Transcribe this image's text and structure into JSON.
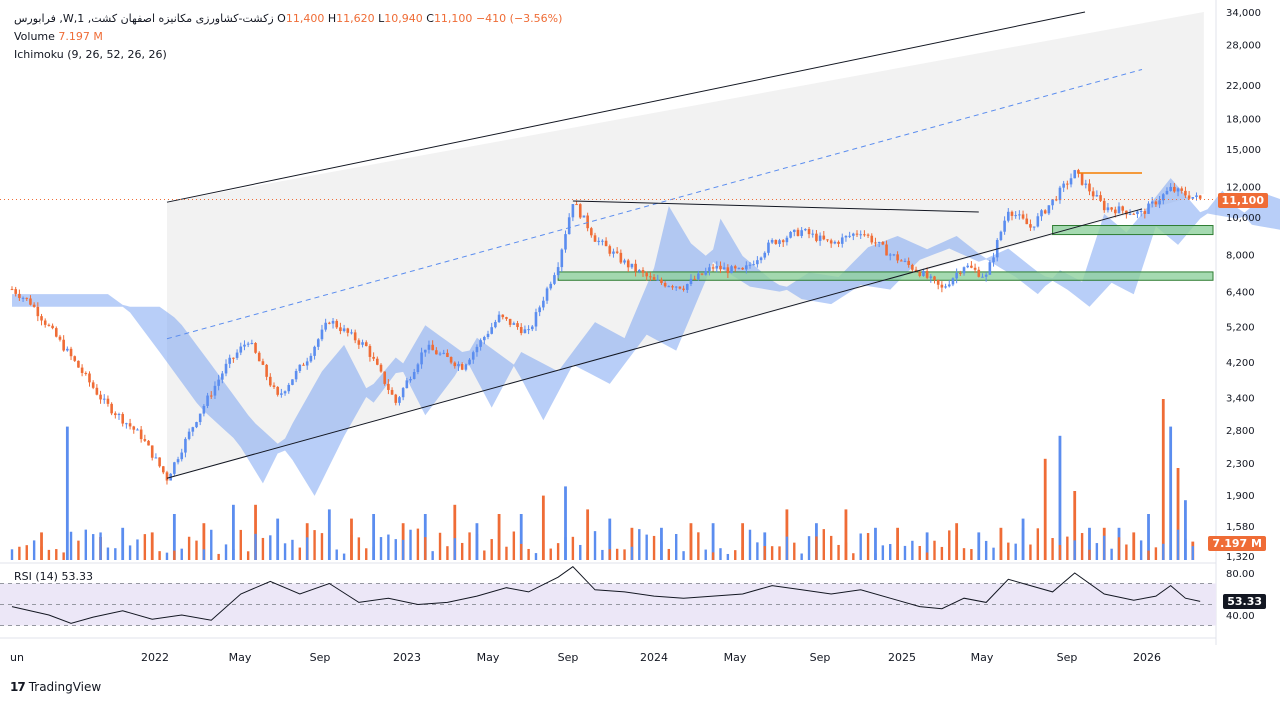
{
  "legend": {
    "symbol": "فرابورس ,W,زکشت-کشاورزی مکانیزه اصفهان کشت, 1",
    "o_label": "O",
    "o_value": "11,400",
    "h_label": "H",
    "h_value": "11,620",
    "l_label": "L",
    "l_value": "10,940",
    "c_label": "C",
    "c_value": "11,100",
    "change": "−410 (−3.56%)",
    "volume_label": "Volume",
    "volume_value": "7.197 M",
    "ichimoku_label": "Ichimoku (9, 26, 52, 26, 26)"
  },
  "badges": {
    "price": "11,100",
    "volume": "7.197 M",
    "rsi": "53.33"
  },
  "rsi": {
    "label": "RSI (14)",
    "value": "53.33"
  },
  "brand": {
    "logo": "17",
    "name": "TradingView"
  },
  "colors": {
    "up": "#5b8def",
    "down": "#ef6c36",
    "cloud_up": "#7ea6f3",
    "cloud_down": "#f0a580",
    "channel_fill": "#f2f2f2",
    "zone": "#8fd19e",
    "zone_border": "#2e7d32",
    "resistance": "#f57c00",
    "midline": "#5b8def",
    "rsi_band": "#ece7f7"
  },
  "chart_data": {
    "type": "candlestick",
    "scale": "log",
    "price_ticks": [
      "34,000",
      "28,000",
      "22,000",
      "18,000",
      "15,000",
      "12,000",
      "10,000",
      "8,000",
      "6,400",
      "5,200",
      "4,200",
      "3,400",
      "2,800",
      "2,300",
      "1,900",
      "1,580",
      "1,320"
    ],
    "price_tick_values": [
      34000,
      28000,
      22000,
      18000,
      15000,
      12000,
      10000,
      8000,
      6400,
      5200,
      4200,
      3400,
      2800,
      2300,
      1900,
      1580,
      1320
    ],
    "rsi_ticks": [
      "80.00",
      "40.00"
    ],
    "x_ticks": [
      "un",
      "2022",
      "May",
      "Sep",
      "2023",
      "May",
      "Sep",
      "2024",
      "May",
      "Sep",
      "2025",
      "May",
      "Sep",
      "2026"
    ],
    "anchors": [
      {
        "w": 0,
        "p": 6500
      },
      {
        "w": 5,
        "p": 6000
      },
      {
        "w": 14,
        "p": 4600
      },
      {
        "w": 25,
        "p": 3300
      },
      {
        "w": 35,
        "p": 2700
      },
      {
        "w": 42,
        "p": 2100
      },
      {
        "w": 50,
        "p": 3000
      },
      {
        "w": 58,
        "p": 4100
      },
      {
        "w": 64,
        "p": 4800
      },
      {
        "w": 72,
        "p": 3400
      },
      {
        "w": 80,
        "p": 4300
      },
      {
        "w": 86,
        "p": 5400
      },
      {
        "w": 96,
        "p": 4600
      },
      {
        "w": 104,
        "p": 3300
      },
      {
        "w": 112,
        "p": 4600
      },
      {
        "w": 122,
        "p": 4100
      },
      {
        "w": 132,
        "p": 5500
      },
      {
        "w": 140,
        "p": 5000
      },
      {
        "w": 148,
        "p": 7600
      },
      {
        "w": 152,
        "p": 11000
      },
      {
        "w": 158,
        "p": 8800
      },
      {
        "w": 166,
        "p": 7600
      },
      {
        "w": 174,
        "p": 6800
      },
      {
        "w": 182,
        "p": 6600
      },
      {
        "w": 190,
        "p": 7400
      },
      {
        "w": 198,
        "p": 7200
      },
      {
        "w": 206,
        "p": 8600
      },
      {
        "w": 214,
        "p": 9200
      },
      {
        "w": 222,
        "p": 8500
      },
      {
        "w": 230,
        "p": 9200
      },
      {
        "w": 238,
        "p": 8000
      },
      {
        "w": 246,
        "p": 7200
      },
      {
        "w": 252,
        "p": 6500
      },
      {
        "w": 258,
        "p": 7500
      },
      {
        "w": 264,
        "p": 7000
      },
      {
        "w": 270,
        "p": 10500
      },
      {
        "w": 276,
        "p": 9400
      },
      {
        "w": 282,
        "p": 11000
      },
      {
        "w": 288,
        "p": 13000
      },
      {
        "w": 296,
        "p": 10600
      },
      {
        "w": 306,
        "p": 10200
      },
      {
        "w": 314,
        "p": 11800
      },
      {
        "w": 322,
        "p": 11100
      }
    ],
    "volume": [
      {
        "w": 8,
        "v": 0.6
      },
      {
        "w": 15,
        "v": 2.9
      },
      {
        "w": 24,
        "v": 0.5
      },
      {
        "w": 30,
        "v": 0.7
      },
      {
        "w": 38,
        "v": 0.6
      },
      {
        "w": 44,
        "v": 1.0
      },
      {
        "w": 52,
        "v": 0.8
      },
      {
        "w": 60,
        "v": 1.2
      },
      {
        "w": 66,
        "v": 1.2
      },
      {
        "w": 72,
        "v": 0.9
      },
      {
        "w": 80,
        "v": 0.8
      },
      {
        "w": 86,
        "v": 1.1
      },
      {
        "w": 92,
        "v": 0.9
      },
      {
        "w": 98,
        "v": 1.0
      },
      {
        "w": 106,
        "v": 0.8
      },
      {
        "w": 112,
        "v": 1.0
      },
      {
        "w": 120,
        "v": 1.2
      },
      {
        "w": 126,
        "v": 0.8
      },
      {
        "w": 132,
        "v": 1.0
      },
      {
        "w": 138,
        "v": 1.0
      },
      {
        "w": 144,
        "v": 1.4
      },
      {
        "w": 150,
        "v": 1.6
      },
      {
        "w": 156,
        "v": 1.1
      },
      {
        "w": 162,
        "v": 0.9
      },
      {
        "w": 168,
        "v": 0.7
      },
      {
        "w": 176,
        "v": 0.7
      },
      {
        "w": 184,
        "v": 0.8
      },
      {
        "w": 190,
        "v": 0.8
      },
      {
        "w": 198,
        "v": 0.8
      },
      {
        "w": 204,
        "v": 0.6
      },
      {
        "w": 210,
        "v": 1.1
      },
      {
        "w": 218,
        "v": 0.8
      },
      {
        "w": 226,
        "v": 1.1
      },
      {
        "w": 234,
        "v": 0.7
      },
      {
        "w": 240,
        "v": 0.7
      },
      {
        "w": 248,
        "v": 0.6
      },
      {
        "w": 256,
        "v": 0.8
      },
      {
        "w": 262,
        "v": 0.6
      },
      {
        "w": 268,
        "v": 0.7
      },
      {
        "w": 274,
        "v": 0.9
      },
      {
        "w": 280,
        "v": 2.2
      },
      {
        "w": 284,
        "v": 2.7
      },
      {
        "w": 288,
        "v": 1.5
      },
      {
        "w": 292,
        "v": 0.7
      },
      {
        "w": 296,
        "v": 0.7
      },
      {
        "w": 300,
        "v": 0.7
      },
      {
        "w": 304,
        "v": 0.6
      },
      {
        "w": 308,
        "v": 1.0
      },
      {
        "w": 312,
        "v": 3.5
      },
      {
        "w": 314,
        "v": 2.9
      },
      {
        "w": 316,
        "v": 2.0
      },
      {
        "w": 318,
        "v": 1.3
      },
      {
        "w": 320,
        "v": 0.4
      }
    ],
    "rsi_values": [
      {
        "w": 0,
        "r": 48
      },
      {
        "w": 10,
        "r": 40
      },
      {
        "w": 16,
        "r": 32
      },
      {
        "w": 22,
        "r": 38
      },
      {
        "w": 30,
        "r": 44
      },
      {
        "w": 38,
        "r": 36
      },
      {
        "w": 46,
        "r": 40
      },
      {
        "w": 54,
        "r": 35
      },
      {
        "w": 62,
        "r": 60
      },
      {
        "w": 70,
        "r": 72
      },
      {
        "w": 78,
        "r": 60
      },
      {
        "w": 86,
        "r": 70
      },
      {
        "w": 94,
        "r": 52
      },
      {
        "w": 102,
        "r": 56
      },
      {
        "w": 110,
        "r": 50
      },
      {
        "w": 118,
        "r": 52
      },
      {
        "w": 126,
        "r": 58
      },
      {
        "w": 134,
        "r": 66
      },
      {
        "w": 140,
        "r": 62
      },
      {
        "w": 148,
        "r": 76
      },
      {
        "w": 152,
        "r": 86
      },
      {
        "w": 158,
        "r": 64
      },
      {
        "w": 166,
        "r": 62
      },
      {
        "w": 174,
        "r": 58
      },
      {
        "w": 182,
        "r": 56
      },
      {
        "w": 190,
        "r": 58
      },
      {
        "w": 198,
        "r": 60
      },
      {
        "w": 206,
        "r": 68
      },
      {
        "w": 214,
        "r": 64
      },
      {
        "w": 222,
        "r": 60
      },
      {
        "w": 230,
        "r": 64
      },
      {
        "w": 238,
        "r": 56
      },
      {
        "w": 246,
        "r": 48
      },
      {
        "w": 252,
        "r": 46
      },
      {
        "w": 258,
        "r": 56
      },
      {
        "w": 264,
        "r": 52
      },
      {
        "w": 270,
        "r": 74
      },
      {
        "w": 276,
        "r": 68
      },
      {
        "w": 282,
        "r": 62
      },
      {
        "w": 288,
        "r": 80
      },
      {
        "w": 296,
        "r": 60
      },
      {
        "w": 304,
        "r": 54
      },
      {
        "w": 310,
        "r": 58
      },
      {
        "w": 314,
        "r": 68
      },
      {
        "w": 318,
        "r": 56
      },
      {
        "w": 322,
        "r": 53
      }
    ],
    "levels": {
      "resistance": 13000,
      "zone_upper": [
        9500,
        9000
      ],
      "zone_lower": [
        7200,
        6850
      ]
    }
  }
}
